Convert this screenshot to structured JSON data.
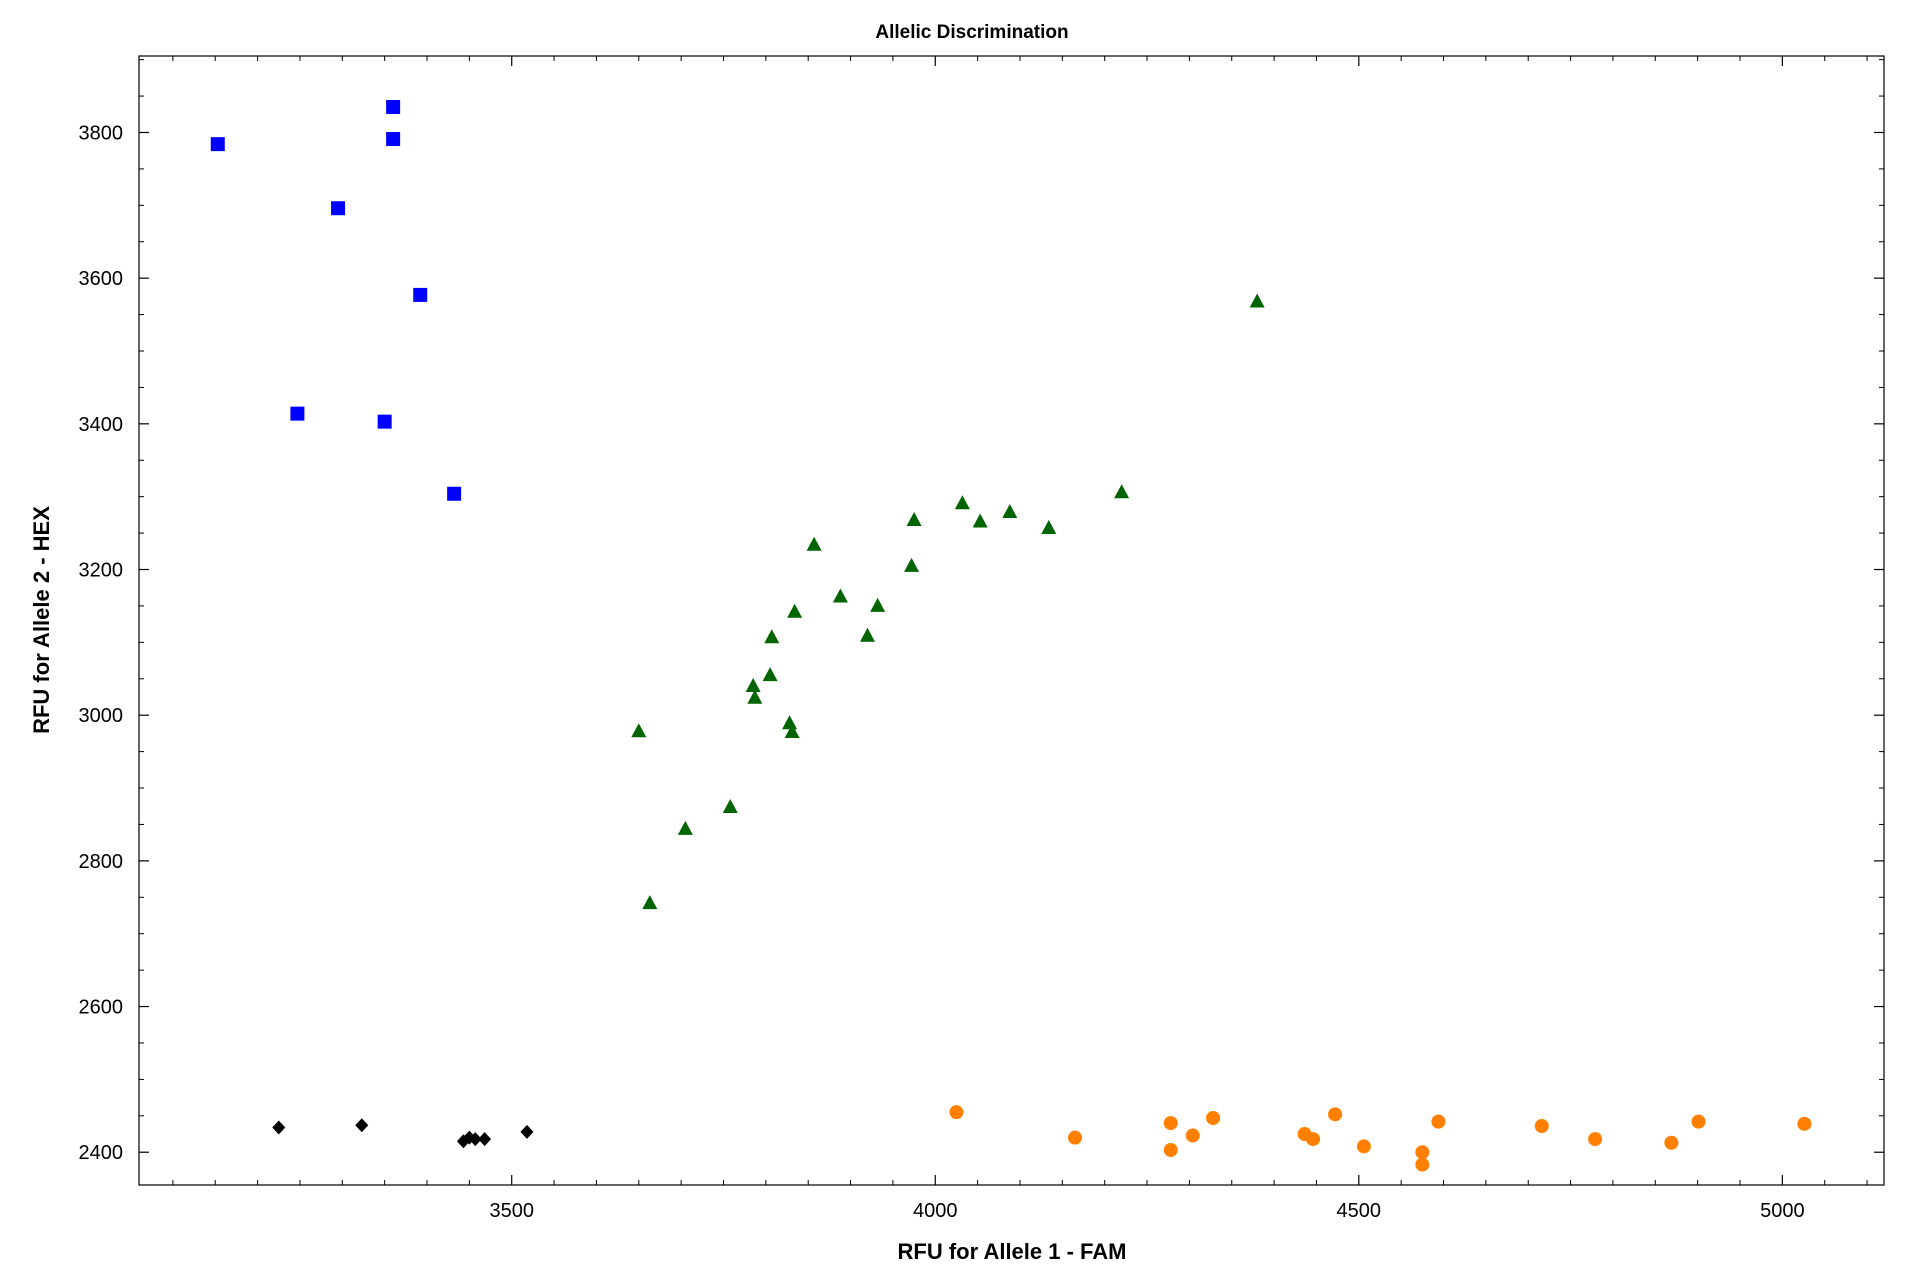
{
  "chart_data": {
    "type": "scatter",
    "title": "Allelic Discrimination",
    "xlabel": "RFU for Allele 1 - FAM",
    "ylabel": "RFU for Allele 2 - HEX",
    "xlim": [
      3060,
      5120
    ],
    "ylim": [
      2355,
      3905
    ],
    "x_ticks": [
      3500,
      4000,
      4500,
      5000
    ],
    "y_ticks": [
      2400,
      2600,
      2800,
      3000,
      3200,
      3400,
      3600,
      3800
    ],
    "x_tick_labels": [
      "3500",
      "4000",
      "4500",
      "5000"
    ],
    "y_tick_labels": [
      "2400",
      "2600",
      "2800",
      "3000",
      "3200",
      "3400",
      "3600",
      "3800"
    ],
    "x_minor_step": 50,
    "y_minor_step": 50,
    "grid": false,
    "legend": "none",
    "series": [
      {
        "marker": "square",
        "color": "#0000FF",
        "points": [
          [
            3153,
            3784
          ],
          [
            3360,
            3835
          ],
          [
            3360,
            3791
          ],
          [
            3295,
            3696
          ],
          [
            3392,
            3577
          ],
          [
            3247,
            3414
          ],
          [
            3350,
            3403
          ],
          [
            3432,
            3304
          ]
        ]
      },
      {
        "marker": "triangle",
        "color": "#006400",
        "points": [
          [
            4380,
            3568
          ],
          [
            4220,
            3306
          ],
          [
            4032,
            3291
          ],
          [
            4053,
            3266
          ],
          [
            4088,
            3279
          ],
          [
            4134,
            3257
          ],
          [
            3975,
            3268
          ],
          [
            3972,
            3205
          ],
          [
            3857,
            3234
          ],
          [
            3888,
            3163
          ],
          [
            3932,
            3150
          ],
          [
            3920,
            3109
          ],
          [
            3834,
            3142
          ],
          [
            3807,
            3107
          ],
          [
            3805,
            3055
          ],
          [
            3785,
            3040
          ],
          [
            3787,
            3024
          ],
          [
            3828,
            2989
          ],
          [
            3831,
            2977
          ],
          [
            3650,
            2978
          ],
          [
            3758,
            2874
          ],
          [
            3705,
            2844
          ],
          [
            3663,
            2742
          ]
        ]
      },
      {
        "marker": "diamond",
        "color": "#000000",
        "points": [
          [
            3225,
            2434
          ],
          [
            3323,
            2437
          ],
          [
            3443,
            2415
          ],
          [
            3450,
            2420
          ],
          [
            3457,
            2418
          ],
          [
            3468,
            2418
          ],
          [
            3518,
            2428
          ]
        ]
      },
      {
        "marker": "circle",
        "color": "#FF8000",
        "points": [
          [
            4025,
            2455
          ],
          [
            4165,
            2420
          ],
          [
            4278,
            2440
          ],
          [
            4278,
            2403
          ],
          [
            4304,
            2423
          ],
          [
            4328,
            2447
          ],
          [
            4436,
            2425
          ],
          [
            4446,
            2418
          ],
          [
            4472,
            2452
          ],
          [
            4506,
            2408
          ],
          [
            4575,
            2400
          ],
          [
            4575,
            2383
          ],
          [
            4594,
            2442
          ],
          [
            4716,
            2436
          ],
          [
            4779,
            2418
          ],
          [
            4869,
            2413
          ],
          [
            4901,
            2442
          ],
          [
            5026,
            2439
          ]
        ]
      }
    ]
  }
}
